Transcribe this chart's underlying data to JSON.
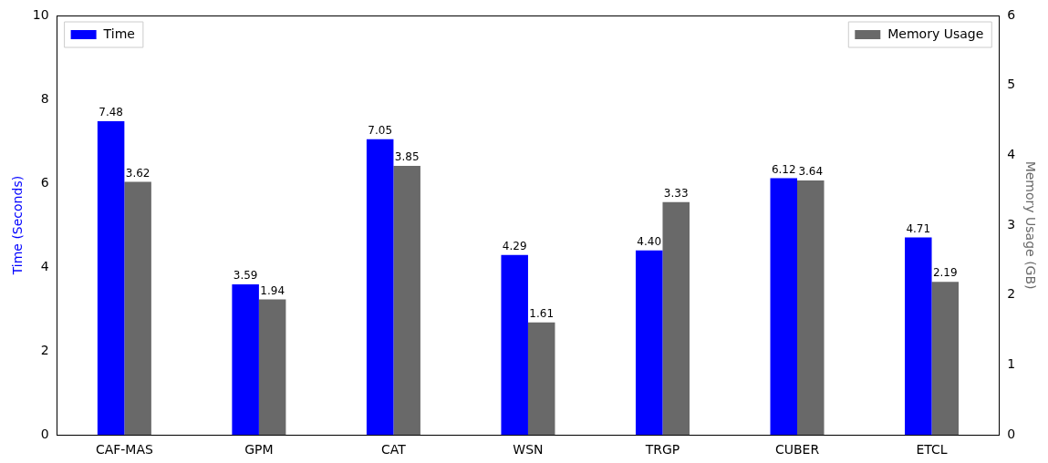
{
  "chart_data": {
    "type": "bar",
    "ylabel": "Time (Seconds)",
    "y2label": "Memory Usage (GB)",
    "categories": [
      "CAF-MAS",
      "GPM",
      "CAT",
      "WSN",
      "TRGP",
      "CUBER",
      "ETCL"
    ],
    "series": [
      {
        "name": "Time",
        "color": "#0000ff",
        "values": [
          7.48,
          3.59,
          7.05,
          4.29,
          4.4,
          6.12,
          4.71
        ],
        "value_labels": [
          "7.48",
          "3.59",
          "7.05",
          "4.29",
          "4.40",
          "6.12",
          "4.71"
        ]
      },
      {
        "name": "Memory Usage",
        "color": "#696969",
        "axis": "y2",
        "values": [
          3.62,
          1.94,
          3.85,
          1.61,
          3.33,
          3.64,
          2.19
        ],
        "value_labels": [
          "3.62",
          "1.94",
          "3.85",
          "1.61",
          "3.33",
          "3.64",
          "2.19"
        ]
      }
    ],
    "ylim": [
      0,
      10
    ],
    "yticks": [
      0,
      2,
      4,
      6,
      8,
      10
    ],
    "y2lim": [
      0,
      6
    ],
    "y2ticks": [
      0,
      1,
      2,
      3,
      4,
      5,
      6
    ],
    "grid": false,
    "legend": "top left"
  }
}
